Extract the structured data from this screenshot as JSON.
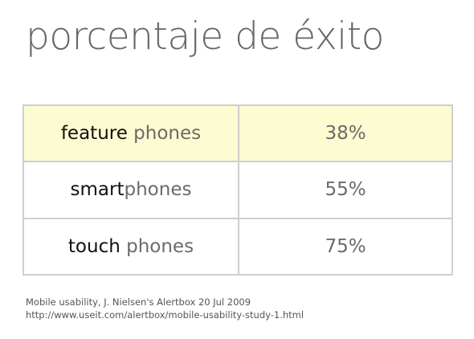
{
  "title": "porcentaje de éxito",
  "rows": [
    {
      "label_strong": "feature",
      "label_rest": " phones",
      "value": "38%"
    },
    {
      "label_strong": "smart",
      "label_rest": "phones",
      "value": "55%"
    },
    {
      "label_strong": "touch",
      "label_rest": " phones",
      "value": "75%"
    }
  ],
  "footer": {
    "citation": "Mobile usability, J. Nielsen's Alertbox 20 Jul 2009",
    "url": "http://www.useit.com/alertbox/mobile-usability-study-1.html"
  },
  "colors": {
    "highlight_row": "#fdfbd1",
    "border": "#cfcfcf",
    "title": "#666666"
  }
}
